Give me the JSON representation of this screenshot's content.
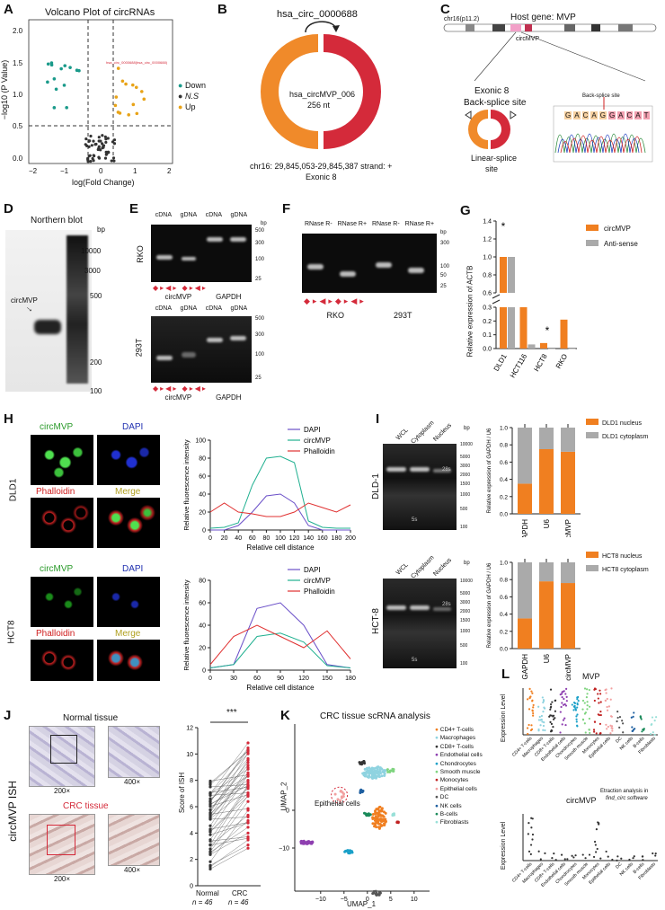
{
  "panels": {
    "A": {
      "label": "A",
      "title": "Volcano Plot of circRNAs",
      "ylabel": "−log10 (P Value)",
      "xlabel": "log(Fold Change)",
      "highlight": "hsa_circ_0000688(hsa_circ_0000688)",
      "legend": [
        {
          "name": "Down",
          "color": "#1a9a8a"
        },
        {
          "name": "N.S",
          "color": "#333333"
        },
        {
          "name": "Up",
          "color": "#e8a317"
        }
      ],
      "xticks": [
        "−2",
        "−1",
        "0",
        "1",
        "2"
      ],
      "yticks": [
        "0.0",
        "0.5",
        "1.0",
        "1.5",
        "2.0"
      ]
    },
    "B": {
      "label": "B",
      "title": "hsa_circ_0000688",
      "center1": "hsa_circMVP_006",
      "center2": "256 nt",
      "footer1": "chr16: 29,845,053-29,845,387 strand: +",
      "footer2": "Exonic 8",
      "colors": {
        "left": "#f08a2a",
        "right": "#d42a3a"
      }
    },
    "C": {
      "label": "C",
      "chr": "chr16(p11.2)",
      "host": "Host gene: MVP",
      "circ": "circMVP",
      "exon": "Exonic 8",
      "bss": "Back-splice site",
      "lss": "Linear-splice",
      "site": "site",
      "seq_label": "Back-splice site",
      "seq_letters": [
        "G",
        "A",
        "C",
        "A",
        "G",
        "G",
        "A",
        "C",
        "A",
        "T"
      ]
    },
    "D": {
      "label": "D",
      "title": "Northern blot",
      "bp": "bp",
      "ladder": [
        "10000",
        "3000",
        "500",
        "200",
        "100"
      ],
      "arrow": "circMVP"
    },
    "E": {
      "label": "E",
      "groups": [
        "cDNA",
        "gDNA",
        "cDNA",
        "gDNA"
      ],
      "row1": "RKO",
      "row2": "293T",
      "genes": [
        "circMVP",
        "GAPDH"
      ],
      "bp1": [
        "bp",
        "500",
        "300",
        "100",
        "25"
      ],
      "bp2": [
        "500",
        "300",
        "100",
        "25"
      ]
    },
    "F": {
      "label": "F",
      "groups": [
        "RNase R-",
        "RNase R+",
        "RNase R-",
        "RNase R+"
      ],
      "cells": [
        "RKO",
        "293T"
      ],
      "bp": [
        "bp",
        "300",
        "100",
        "50",
        "25"
      ]
    },
    "G": {
      "label": "G",
      "ylabel": "Relative expression of ACTB",
      "legend": [
        "circMVP",
        "Anti-sense"
      ],
      "yticks_top": [
        "1.4",
        "1.2",
        "1.0",
        "0.8",
        "0.6"
      ],
      "yticks_bot": [
        "0.3",
        "0.2",
        "0.1",
        "0.0"
      ],
      "star": "*"
    },
    "H": {
      "label": "H",
      "titles": [
        "circMVP",
        "DAPI",
        "Phalloidin",
        "Merge"
      ],
      "rows": [
        "DLD1",
        "HCT8"
      ],
      "ylabel": "Relative fluorescence intensity",
      "xlabel": "Relative cell distance",
      "legend": [
        "DAPI",
        "circMVP",
        "Phalloidin"
      ],
      "xticks1": [
        "0",
        "20",
        "40",
        "60",
        "80",
        "100",
        "120",
        "140",
        "160",
        "180",
        "200"
      ],
      "xticks2": [
        "0",
        "30",
        "60",
        "90",
        "120",
        "150",
        "180"
      ],
      "yticks1": [
        "0",
        "20",
        "40",
        "60",
        "80",
        "100"
      ],
      "yticks2": [
        "0",
        "20",
        "40",
        "60",
        "80"
      ]
    },
    "I": {
      "label": "I",
      "lanes": [
        "WCL",
        "Cytoplasm",
        "Nucleus"
      ],
      "rows": [
        "DLD-1",
        "HCT-8"
      ],
      "bp": [
        "bp",
        "10000",
        "5000",
        "3000",
        "2000",
        "1500",
        "1000",
        "500",
        "100"
      ],
      "s28": "28s",
      "s5": "5s",
      "ylabel": "Relative expression of GAPDH / U6",
      "cats": [
        "GAPDH",
        "U6",
        "circMVP"
      ],
      "legend1": [
        "DLD1 nucleus",
        "DLD1 cytoplasm"
      ],
      "legend2": [
        "HCT8 nucleus",
        "HCT8 cytoplasm"
      ],
      "yticks": [
        "0.0",
        "0.2",
        "0.4",
        "0.6",
        "0.8",
        "1.0"
      ]
    },
    "J": {
      "label": "J",
      "side": "circMVP ISH",
      "normal": "Normal tissue",
      "crc": "CRC tissue",
      "mag1": "200×",
      "mag2": "400×",
      "ylabel": "Score of ISH",
      "yticks": [
        "0",
        "2",
        "4",
        "6",
        "8",
        "10",
        "12"
      ],
      "groups": [
        "Normal",
        "CRC"
      ],
      "n": "n = 46",
      "sig": "***"
    },
    "K": {
      "label": "K",
      "title": "CRC tissue scRNA analysis",
      "xlabel": "UMAP_1",
      "ylabel": "UMAP_2",
      "annot": "Epithelial cells",
      "xticks": [
        "−10",
        "−5",
        "0",
        "5",
        "10"
      ],
      "yticks": [
        "0",
        "−10"
      ],
      "legend": [
        {
          "name": "CD4+ T-cells",
          "color": "#f07f20"
        },
        {
          "name": "Macrophages",
          "color": "#8fd3e0"
        },
        {
          "name": "CD8+ T-cells",
          "color": "#333333"
        },
        {
          "name": "Endothelial cells",
          "color": "#8e3fb0"
        },
        {
          "name": "Chondrocytes",
          "color": "#1aa0c8"
        },
        {
          "name": "Smooth muscle",
          "color": "#7fd47f"
        },
        {
          "name": "Monocytes",
          "color": "#c02020"
        },
        {
          "name": "Epithelial cells",
          "color": "#f2a0a0"
        },
        {
          "name": "DC",
          "color": "#555555"
        },
        {
          "name": "NK cells",
          "color": "#1e5fa0"
        },
        {
          "name": "B-cells",
          "color": "#1a8a5a"
        },
        {
          "name": "Fibroblasts",
          "color": "#99e0d8"
        }
      ]
    },
    "L": {
      "label": "L",
      "title1": "MVP",
      "title2": "circMVP",
      "ylabel": "Expression Level",
      "note1": "Etraction analysis in",
      "note2": "find_circ software",
      "cats": [
        "CD4+ T-cells",
        "Macrophages",
        "CD8+ T-cells",
        "Endothelial cells",
        "Chondrocytes",
        "Smooth muscle",
        "Monocytes",
        "Epithelial cells",
        "DC",
        "NK cells",
        "B-cells",
        "Fibroblasts"
      ]
    }
  },
  "chart_data": [
    {
      "type": "bar",
      "title": "",
      "ylabel": "Relative expression of ACTB",
      "categories": [
        "DLD1",
        "HCT116",
        "HCT8",
        "RKO"
      ],
      "series": [
        {
          "name": "circMVP",
          "color": "#f07f20",
          "values": [
            1.0,
            0.3,
            0.04,
            0.21
          ]
        },
        {
          "name": "Anti-sense",
          "color": "#aaaaaa",
          "values": [
            1.0,
            0.03,
            0.0,
            0.0
          ]
        }
      ]
    },
    {
      "type": "bar",
      "ylabel": "Relative expression of GAPDH / U6",
      "categories": [
        "GAPDH",
        "U6",
        "circMVP"
      ],
      "series": [
        {
          "name": "DLD1 nucleus",
          "color": "#f07f20",
          "values": [
            0.35,
            0.75,
            0.72
          ]
        },
        {
          "name": "DLD1 cytoplasm",
          "color": "#aaaaaa",
          "values": [
            0.65,
            0.25,
            0.28
          ]
        }
      ]
    },
    {
      "type": "bar",
      "ylabel": "Relative expression of GAPDH / U6",
      "categories": [
        "GAPDH",
        "U6",
        "circMVP"
      ],
      "series": [
        {
          "name": "HCT8 nucleus",
          "color": "#f07f20",
          "values": [
            0.35,
            0.78,
            0.76
          ]
        },
        {
          "name": "HCT8 cytoplasm",
          "color": "#aaaaaa",
          "values": [
            0.65,
            0.22,
            0.24
          ]
        }
      ]
    },
    {
      "type": "line",
      "xlabel": "Relative cell distance",
      "ylabel": "Relative fluorescence intensity",
      "x": [
        0,
        20,
        40,
        60,
        80,
        100,
        120,
        140,
        160,
        180,
        200
      ],
      "series": [
        {
          "name": "DAPI",
          "color": "#6a4fc8",
          "values": [
            0,
            0,
            5,
            20,
            38,
            40,
            30,
            5,
            0,
            0,
            0
          ]
        },
        {
          "name": "circMVP",
          "color": "#20b090",
          "values": [
            2,
            3,
            8,
            50,
            80,
            82,
            75,
            10,
            3,
            2,
            2
          ]
        },
        {
          "name": "Phalloidin",
          "color": "#e03030",
          "values": [
            20,
            30,
            20,
            18,
            15,
            15,
            20,
            30,
            25,
            20,
            28
          ]
        }
      ]
    },
    {
      "type": "line",
      "xlabel": "Relative cell distance",
      "ylabel": "Relative fluorescence intensity",
      "x": [
        0,
        30,
        60,
        90,
        120,
        150,
        180
      ],
      "series": [
        {
          "name": "DAPI",
          "color": "#6a4fc8",
          "values": [
            2,
            5,
            55,
            60,
            40,
            5,
            2
          ]
        },
        {
          "name": "circMVP",
          "color": "#20b090",
          "values": [
            2,
            5,
            30,
            33,
            25,
            4,
            2
          ]
        },
        {
          "name": "Phalloidin",
          "color": "#e03030",
          "values": [
            5,
            30,
            40,
            30,
            20,
            35,
            10
          ]
        }
      ]
    }
  ]
}
